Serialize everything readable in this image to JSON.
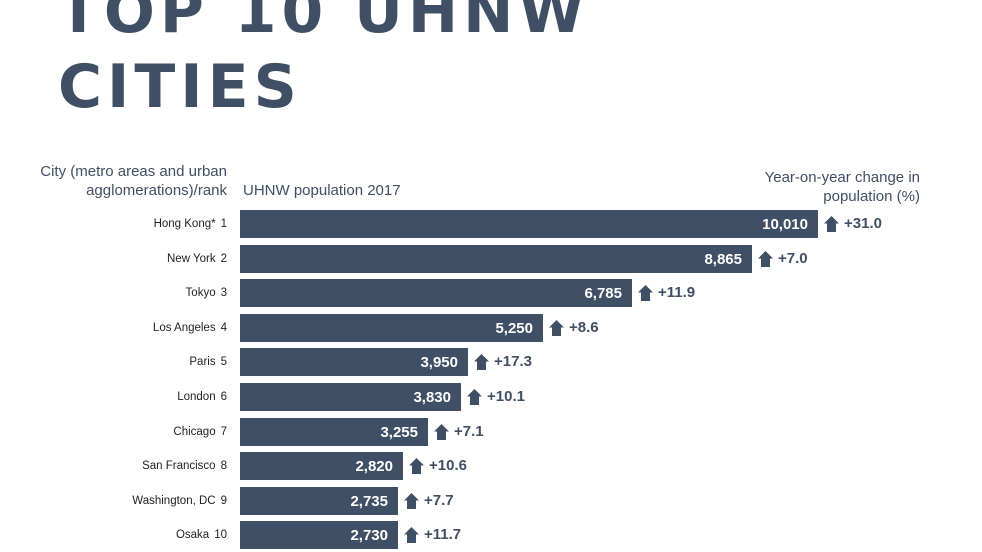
{
  "title_line1": "TOP 10 UHNW",
  "title_line2": "CITIES",
  "headers": {
    "city": "City (metro areas and urban agglomerations)/rank",
    "population": "UHNW population 2017",
    "change": "Year-on-year change in population (%)"
  },
  "colors": {
    "bar": "#3f4f65",
    "title": "#3f4f65"
  },
  "change_icon": "house-up-arrow-icon",
  "chart_data": {
    "type": "bar",
    "orientation": "horizontal",
    "categories": [
      "Hong Kong*",
      "New York",
      "Tokyo",
      "Los Angeles",
      "Paris",
      "London",
      "Chicago",
      "San Francisco",
      "Washington, DC",
      "Osaka"
    ],
    "ranks": [
      "1",
      "2",
      "3",
      "4",
      "5",
      "6",
      "7",
      "8",
      "9",
      "10"
    ],
    "series": [
      {
        "name": "UHNW population 2017",
        "values": [
          10010,
          8865,
          6785,
          5250,
          3950,
          3830,
          3255,
          2820,
          2735,
          2730
        ],
        "labels": [
          "10,010",
          "8,865",
          "6,785",
          "5,250",
          "3,950",
          "3,830",
          "3,255",
          "2,820",
          "2,735",
          "2,730"
        ]
      },
      {
        "name": "Year-on-year change in population (%)",
        "values": [
          31.0,
          7.0,
          11.9,
          8.6,
          17.3,
          10.1,
          7.1,
          10.6,
          7.7,
          11.7
        ],
        "labels": [
          "+31.0",
          "+7.0",
          "+11.9",
          "+8.6",
          "+17.3",
          "+10.1",
          "+7.1",
          "+10.6",
          "+7.7",
          "+11.7"
        ]
      }
    ],
    "title": "TOP 10 UHNW CITIES",
    "xlabel": "UHNW population 2017",
    "ylabel": "City (metro areas and urban agglomerations)/rank",
    "xlim": [
      0,
      10010
    ],
    "grid": false,
    "legend": "none"
  }
}
